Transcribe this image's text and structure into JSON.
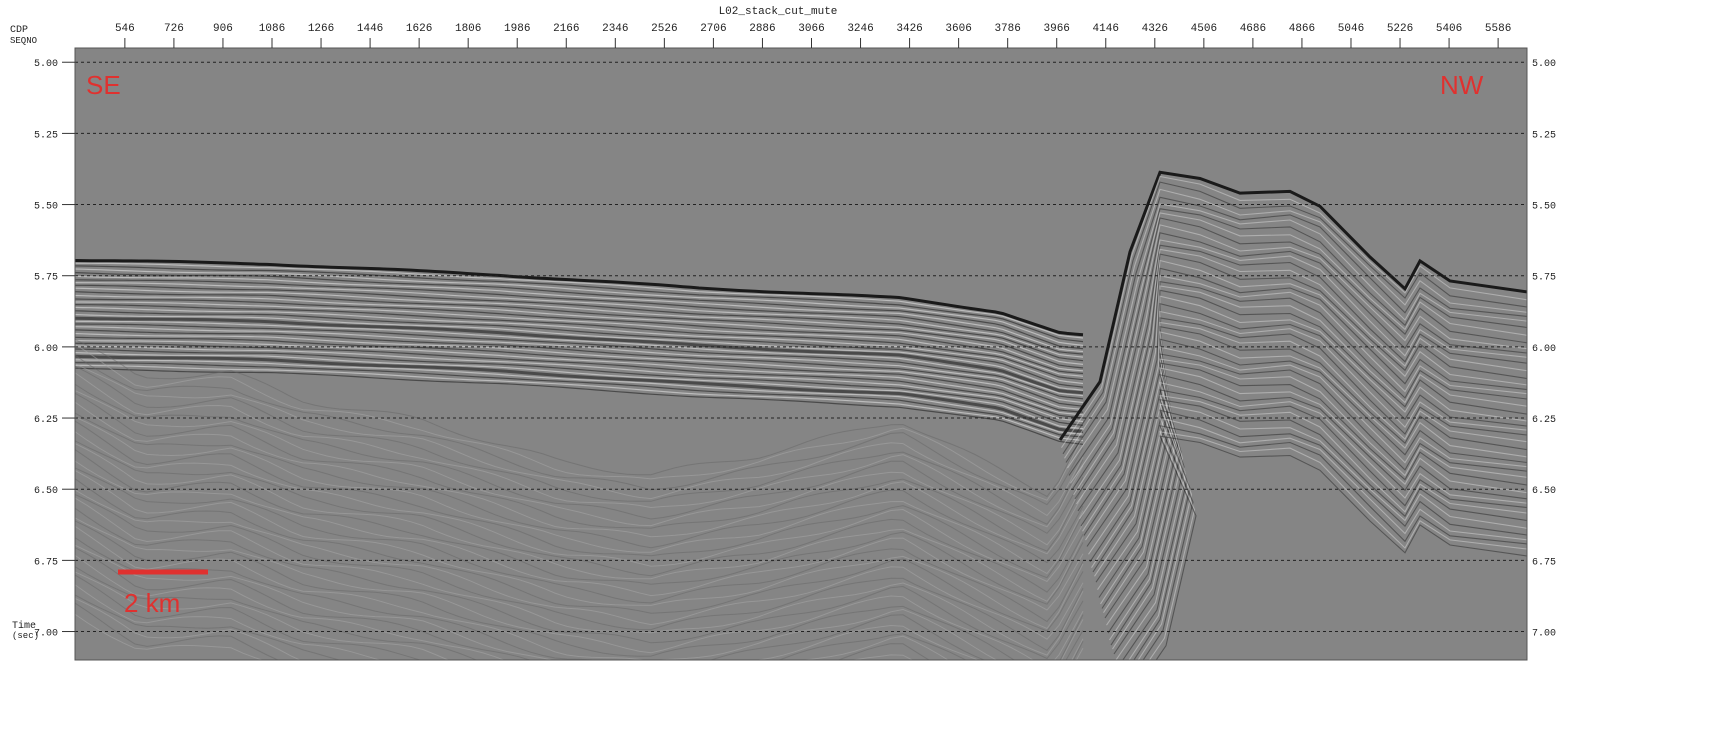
{
  "chart_data": {
    "type": "seismic",
    "title": "L02_stack_cut_mute",
    "x_label": "CDP",
    "x_label_2": "SEQNO",
    "y_label": "Time",
    "y_unit": "(sec)",
    "annotations": [
      "SE",
      "NW"
    ],
    "scale_bar": "2 km",
    "xlim": [
      363,
      5692
    ],
    "xticks": [
      546,
      726,
      906,
      1086,
      1266,
      1446,
      1626,
      1806,
      1986,
      2166,
      2346,
      2526,
      2706,
      2886,
      3066,
      3246,
      3426,
      3606,
      3786,
      3966,
      4146,
      4326,
      4506,
      4686,
      4866,
      5046,
      5226,
      5406,
      5586
    ],
    "ylim": [
      4.95,
      7.1
    ],
    "yticks": [
      {
        "value": 5,
        "label": "5.00"
      },
      {
        "value": 5.25,
        "label": "5.25"
      },
      {
        "value": 5.5,
        "label": "5.50"
      },
      {
        "value": 5.75,
        "label": "5.75"
      },
      {
        "value": 6,
        "label": "6.00"
      },
      {
        "value": 6.25,
        "label": "6.25"
      },
      {
        "value": 6.5,
        "label": "6.50"
      },
      {
        "value": 6.75,
        "label": "6.75"
      },
      {
        "value": 7,
        "label": "7.00"
      }
    ],
    "grid": true,
    "annotation_color": "#e0312f"
  }
}
